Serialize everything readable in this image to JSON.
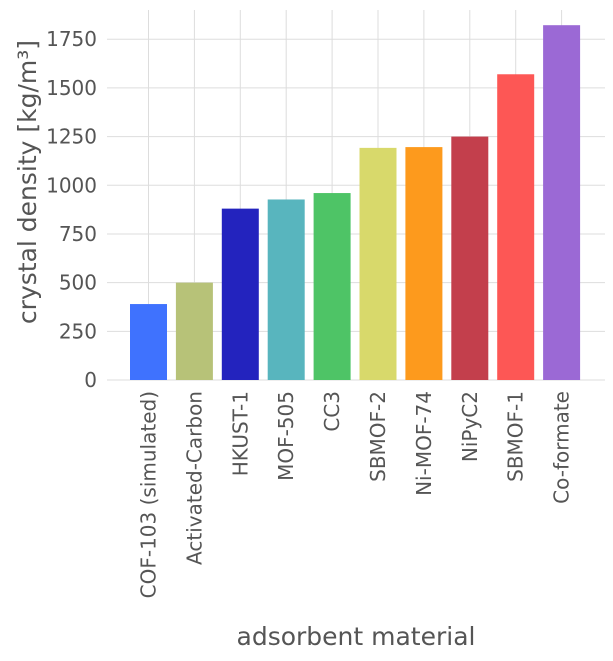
{
  "chart_data": {
    "type": "bar",
    "xlabel": "adsorbent material",
    "ylabel": "crystal density [kg/m³]",
    "ylim": [
      0,
      1900
    ],
    "yticks": [
      0,
      250,
      500,
      750,
      1000,
      1250,
      1500,
      1750
    ],
    "grid": true,
    "categories": [
      "COF-103 (simulated)",
      "Activated-Carbon",
      "HKUST-1",
      "MOF-505",
      "CC3",
      "SBMOF-2",
      "Ni-MOF-74",
      "NiPyC2",
      "SBMOF-1",
      "Co-formate"
    ],
    "values": [
      390,
      500,
      880,
      927,
      960,
      1192,
      1196,
      1250,
      1570,
      1822
    ],
    "colors": [
      "#3f72fe",
      "#b7c278",
      "#2323be",
      "#58b5be",
      "#4ec466",
      "#d8d96b",
      "#fd9a1d",
      "#c33f4c",
      "#fd5755",
      "#9b69d5"
    ]
  },
  "style": {
    "background": "#ffffff",
    "plot_background": "#ffffff",
    "grid_color": "#dddddd",
    "text_color": "#555555"
  }
}
